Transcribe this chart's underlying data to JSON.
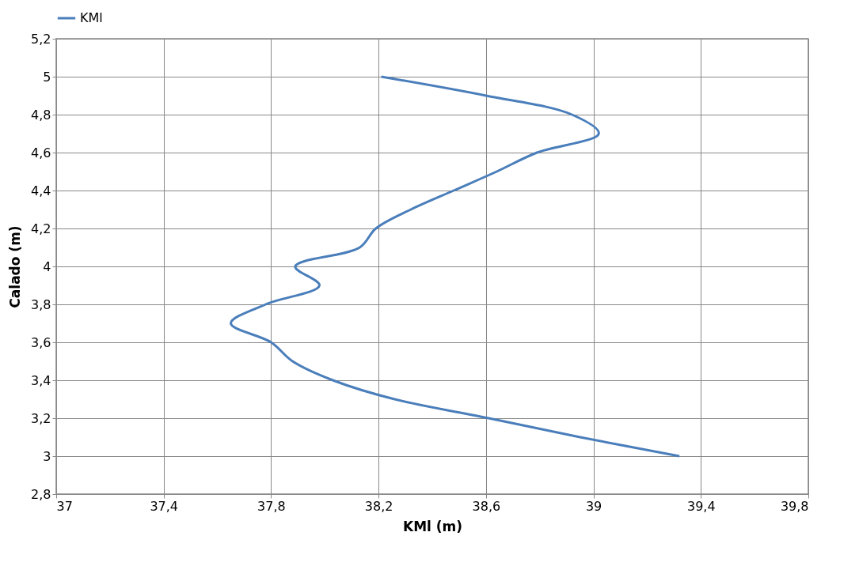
{
  "chart_data": {
    "type": "line",
    "xlabel": "KMl (m)",
    "ylabel": "Calado (m)",
    "x": [
      39.32,
      38.95,
      38.61,
      38.26,
      38.03,
      37.88,
      37.8,
      37.65,
      37.78,
      37.98,
      37.89,
      38.13,
      38.19,
      38.32,
      38.48,
      38.64,
      38.79,
      39.02,
      38.92,
      38.6,
      38.21
    ],
    "series": [
      {
        "name": "KMl",
        "color": "#4a7ebb",
        "values": [
          3.0,
          3.1,
          3.2,
          3.3,
          3.4,
          3.5,
          3.6,
          3.7,
          3.8,
          3.9,
          4.0,
          4.1,
          4.2,
          4.3,
          4.4,
          4.5,
          4.6,
          4.7,
          4.8,
          4.9,
          5.0
        ]
      }
    ],
    "xlim": [
      37,
      39.8
    ],
    "ylim": [
      2.8,
      5.2
    ],
    "xticks": [
      37,
      {
        "value": 37.4,
        "label": "37,4"
      },
      {
        "value": 37.8,
        "label": "37,8"
      },
      {
        "value": 38.2,
        "label": "38,2"
      },
      {
        "value": 38.6,
        "label": "38,6"
      },
      39,
      {
        "value": 39.4,
        "label": "39,4"
      },
      {
        "value": 39.8,
        "label": "39,8"
      }
    ],
    "yticks": [
      {
        "value": 2.8,
        "label": "2,8"
      },
      3,
      {
        "value": 3.2,
        "label": "3,2"
      },
      {
        "value": 3.4,
        "label": "3,4"
      },
      {
        "value": 3.6,
        "label": "3,6"
      },
      {
        "value": 3.8,
        "label": "3,8"
      },
      4,
      {
        "value": 4.2,
        "label": "4,2"
      },
      {
        "value": 4.4,
        "label": "4,4"
      },
      {
        "value": 4.6,
        "label": "4,6"
      },
      {
        "value": 4.8,
        "label": "4,8"
      },
      5,
      {
        "value": 5.2,
        "label": "5,2"
      }
    ],
    "grid": true,
    "legend": "top",
    "marker": "none",
    "line_style": "solid"
  }
}
